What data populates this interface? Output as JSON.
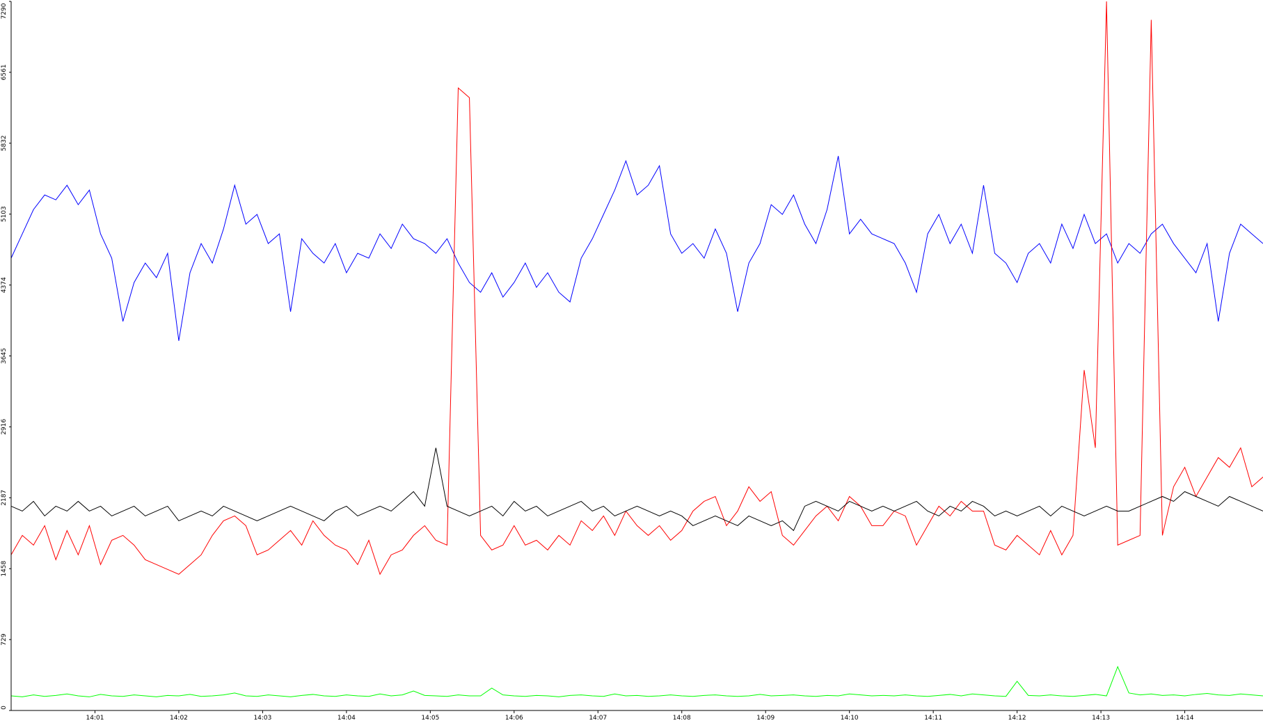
{
  "chart_data": {
    "type": "line",
    "x": [
      0,
      8,
      16,
      24,
      32,
      40,
      48,
      56,
      64,
      72,
      80,
      88,
      96,
      104,
      112,
      120,
      128,
      136,
      144,
      152,
      160,
      168,
      176,
      184,
      192,
      200,
      208,
      216,
      224,
      232,
      240,
      248,
      256,
      264,
      272,
      280,
      288,
      296,
      304,
      312,
      320,
      328,
      336,
      344,
      352,
      360,
      368,
      376,
      384,
      392,
      400,
      408,
      416,
      424,
      432,
      440,
      448,
      456,
      464,
      472,
      480,
      488,
      496,
      504,
      512,
      520,
      528,
      536,
      544,
      552,
      560,
      568,
      576,
      584,
      592,
      600,
      608,
      616,
      624,
      632,
      640,
      648,
      656,
      664,
      672,
      680,
      688,
      696,
      704,
      712,
      720,
      728,
      736,
      744,
      752,
      760,
      768,
      776,
      784,
      792,
      800,
      808,
      816,
      824,
      832,
      840,
      848,
      856,
      864,
      872,
      880,
      888,
      896
    ],
    "xlim": [
      0,
      896
    ],
    "xticks": [
      {
        "value": 60,
        "label": "14:01"
      },
      {
        "value": 120,
        "label": "14:02"
      },
      {
        "value": 180,
        "label": "14:03"
      },
      {
        "value": 240,
        "label": "14:04"
      },
      {
        "value": 300,
        "label": "14:05"
      },
      {
        "value": 360,
        "label": "14:06"
      },
      {
        "value": 420,
        "label": "14:07"
      },
      {
        "value": 480,
        "label": "14:08"
      },
      {
        "value": 540,
        "label": "14:09"
      },
      {
        "value": 600,
        "label": "14:10"
      },
      {
        "value": 660,
        "label": "14:11"
      },
      {
        "value": 720,
        "label": "14:12"
      },
      {
        "value": 780,
        "label": "14:13"
      },
      {
        "value": 840,
        "label": "14:14"
      }
    ],
    "ylim": [
      0,
      7290
    ],
    "yticks": [
      0,
      729,
      1458,
      2187,
      2916,
      3645,
      4374,
      5103,
      5832,
      6561,
      7290
    ],
    "series": [
      {
        "color": "#0000ff",
        "values": [
          4650,
          4900,
          5150,
          5300,
          5250,
          5400,
          5200,
          5350,
          4900,
          4650,
          4000,
          4400,
          4600,
          4450,
          4700,
          3800,
          4500,
          4800,
          4600,
          4950,
          5400,
          5000,
          5100,
          4800,
          4900,
          4100,
          4850,
          4700,
          4600,
          4800,
          4500,
          4700,
          4650,
          4900,
          4750,
          5000,
          4850,
          4800,
          4700,
          4850,
          4600,
          4400,
          4300,
          4500,
          4250,
          4400,
          4600,
          4350,
          4500,
          4300,
          4200,
          4650,
          4850,
          5100,
          5350,
          5650,
          5300,
          5400,
          5600,
          4900,
          4700,
          4800,
          4650,
          4950,
          4700,
          4100,
          4600,
          4800,
          5200,
          5100,
          5300,
          5000,
          4800,
          5150,
          5700,
          4900,
          5050,
          4900,
          4850,
          4800,
          4600,
          4300,
          4900,
          5100,
          4800,
          5000,
          4700,
          5400,
          4700,
          4600,
          4400,
          4700,
          4800,
          4600,
          5000,
          4750,
          5100,
          4800,
          4900,
          4600,
          4800,
          4700,
          4900,
          5000,
          4800,
          4650,
          4500,
          4800,
          4000,
          4700,
          5000,
          4900,
          4800
        ]
      },
      {
        "color": "#ff0000",
        "values": [
          1600,
          1800,
          1700,
          1900,
          1550,
          1850,
          1600,
          1900,
          1500,
          1750,
          1800,
          1700,
          1550,
          1500,
          1450,
          1400,
          1500,
          1600,
          1800,
          1950,
          2000,
          1900,
          1600,
          1650,
          1750,
          1850,
          1700,
          1950,
          1800,
          1700,
          1650,
          1500,
          1750,
          1400,
          1600,
          1650,
          1800,
          1900,
          1750,
          1700,
          6400,
          6300,
          1800,
          1650,
          1700,
          1900,
          1700,
          1750,
          1650,
          1800,
          1700,
          1950,
          1850,
          2000,
          1800,
          2050,
          1900,
          1800,
          1900,
          1750,
          1850,
          2050,
          2150,
          2200,
          1900,
          2050,
          2300,
          2150,
          2250,
          1800,
          1700,
          1850,
          2000,
          2100,
          1950,
          2200,
          2100,
          1900,
          1900,
          2050,
          2000,
          1700,
          1900,
          2100,
          2000,
          2150,
          2050,
          2050,
          1700,
          1650,
          1800,
          1700,
          1600,
          1850,
          1600,
          1800,
          3500,
          2700,
          7290,
          1700,
          1750,
          1800,
          7100,
          1800,
          2300,
          2500,
          2200,
          2400,
          2600,
          2500,
          2700,
          2300,
          2400
        ]
      },
      {
        "color": "#000000",
        "values": [
          2100,
          2050,
          2150,
          2000,
          2100,
          2050,
          2150,
          2050,
          2100,
          2000,
          2050,
          2100,
          2000,
          2050,
          2100,
          1950,
          2000,
          2050,
          2000,
          2100,
          2050,
          2000,
          1950,
          2000,
          2050,
          2100,
          2050,
          2000,
          1950,
          2050,
          2100,
          2000,
          2050,
          2100,
          2050,
          2150,
          2250,
          2100,
          2700,
          2100,
          2050,
          2000,
          2050,
          2100,
          2000,
          2150,
          2050,
          2100,
          2000,
          2050,
          2100,
          2150,
          2050,
          2100,
          2000,
          2050,
          2100,
          2050,
          2000,
          2050,
          2000,
          1900,
          1950,
          2000,
          1950,
          1900,
          2000,
          1950,
          1900,
          1950,
          1850,
          2100,
          2150,
          2100,
          2050,
          2150,
          2100,
          2050,
          2100,
          2050,
          2100,
          2150,
          2050,
          2000,
          2100,
          2050,
          2150,
          2100,
          2000,
          2050,
          2000,
          2050,
          2100,
          2000,
          2100,
          2050,
          2000,
          2050,
          2100,
          2050,
          2050,
          2100,
          2150,
          2200,
          2150,
          2250,
          2200,
          2150,
          2100,
          2200,
          2150,
          2100,
          2050
        ]
      },
      {
        "color": "#00ff00",
        "values": [
          150,
          140,
          160,
          145,
          155,
          170,
          150,
          140,
          165,
          150,
          145,
          160,
          150,
          140,
          155,
          150,
          165,
          145,
          150,
          160,
          180,
          150,
          145,
          160,
          150,
          140,
          155,
          165,
          150,
          145,
          160,
          150,
          145,
          170,
          150,
          160,
          200,
          155,
          150,
          145,
          160,
          150,
          150,
          230,
          160,
          150,
          145,
          155,
          150,
          140,
          155,
          160,
          150,
          145,
          170,
          150,
          155,
          145,
          150,
          160,
          150,
          145,
          155,
          160,
          150,
          145,
          150,
          165,
          150,
          155,
          160,
          150,
          145,
          155,
          150,
          170,
          160,
          150,
          155,
          150,
          160,
          150,
          145,
          155,
          165,
          150,
          170,
          160,
          150,
          145,
          300,
          155,
          150,
          160,
          150,
          145,
          155,
          165,
          150,
          450,
          180,
          160,
          170,
          155,
          160,
          150,
          165,
          175,
          160,
          155,
          170,
          160,
          150
        ]
      }
    ]
  }
}
